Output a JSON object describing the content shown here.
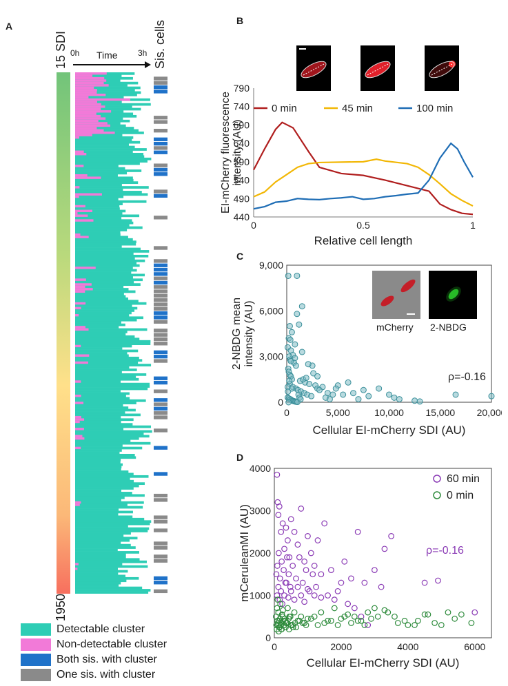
{
  "figure": {
    "panels": {
      "a": "A",
      "b": "B",
      "c": "C",
      "d": "D"
    }
  },
  "panel_a": {
    "sdi_top_label": "15 SDI",
    "sdi_bottom_label": "1950",
    "time_label": "Time",
    "time_start": "0h",
    "time_end": "3h",
    "sis_label": "Sis. cells",
    "colors": {
      "detectable": "#2ecdb5",
      "non_detectable": "#f27ad8",
      "both_sis": "#1f72c9",
      "one_sis": "#8a8a8a",
      "gradient_top": "#72c47a",
      "gradient_mid": "#ffe08a",
      "gradient_bottom": "#f76f5e"
    },
    "legend": [
      {
        "label": "Detectable cluster",
        "color": "#2ecdb5"
      },
      {
        "label": "Non-detectable cluster",
        "color": "#f27ad8"
      },
      {
        "label": "Both sis. with cluster",
        "color": "#1f72c9"
      },
      {
        "label": "One sis. with cluster",
        "color": "#8a8a8a"
      }
    ]
  },
  "chart_data": [
    {
      "id": "B",
      "type": "line",
      "ylabel_line1": "EI-mCherry fluorescence",
      "ylabel_line2": "intensity (AU)",
      "xlabel": "Relative cell length",
      "xlim": [
        0,
        1
      ],
      "ylim": [
        440,
        790
      ],
      "yticks": [
        440,
        490,
        540,
        590,
        640,
        690,
        740,
        790
      ],
      "xticks": [
        0,
        0.5,
        1
      ],
      "xtick_labels": [
        "0",
        "0.5",
        "1"
      ],
      "series": [
        {
          "name": "0 min",
          "color": "#b01e1e",
          "x": [
            0,
            0.05,
            0.1,
            0.13,
            0.18,
            0.25,
            0.3,
            0.4,
            0.5,
            0.6,
            0.7,
            0.8,
            0.85,
            0.9,
            0.95,
            1.0
          ],
          "y": [
            568,
            625,
            678,
            697,
            682,
            618,
            575,
            558,
            553,
            540,
            525,
            510,
            475,
            460,
            450,
            447
          ]
        },
        {
          "name": "45 min",
          "color": "#f2b705",
          "x": [
            0,
            0.05,
            0.1,
            0.15,
            0.2,
            0.25,
            0.3,
            0.4,
            0.5,
            0.56,
            0.6,
            0.7,
            0.75,
            0.8,
            0.85,
            0.9,
            0.95,
            1.0
          ],
          "y": [
            495,
            508,
            535,
            555,
            575,
            585,
            588,
            589,
            590,
            597,
            592,
            585,
            575,
            555,
            530,
            503,
            485,
            470
          ]
        },
        {
          "name": "100 min",
          "color": "#1e6db5",
          "x": [
            0,
            0.05,
            0.1,
            0.15,
            0.2,
            0.25,
            0.3,
            0.35,
            0.4,
            0.45,
            0.5,
            0.55,
            0.6,
            0.65,
            0.7,
            0.75,
            0.8,
            0.85,
            0.9,
            0.93,
            0.96,
            1.0
          ],
          "y": [
            462,
            468,
            480,
            483,
            490,
            488,
            487,
            490,
            492,
            495,
            488,
            490,
            495,
            498,
            502,
            505,
            540,
            600,
            640,
            625,
            590,
            548
          ]
        }
      ]
    },
    {
      "id": "C",
      "type": "scatter",
      "ylabel_line1": "2-NBDG mean",
      "ylabel_line2": "intensity (AU)",
      "xlabel": "Cellular EI-mCherry SDI (AU)",
      "xlim": [
        0,
        20000
      ],
      "ylim": [
        0,
        9000
      ],
      "xticks": [
        0,
        5000,
        10000,
        15000,
        20000
      ],
      "xtick_labels": [
        "0",
        "5,000",
        "10,000",
        "15,000",
        "20,000"
      ],
      "yticks": [
        0,
        3000,
        6000,
        9000
      ],
      "ytick_labels": [
        "0",
        "3,000",
        "6,000",
        "9,000"
      ],
      "annotation": "ρ=-0.16",
      "inset_labels": [
        "mCherry",
        "2-NBDG"
      ],
      "series": [
        {
          "name": "cells",
          "color": "#3a8f9a",
          "x": [
            150,
            1000,
            300,
            500,
            200,
            800,
            100,
            400,
            600,
            1500,
            250,
            350,
            700,
            900,
            1200,
            150,
            200,
            300,
            400,
            500,
            1300,
            1800,
            2200,
            2500,
            2800,
            3000,
            3500,
            4000,
            4500,
            5000,
            6000,
            6500,
            7500,
            8000,
            9000,
            10000,
            10500,
            11000,
            12500,
            13000,
            16500,
            20000,
            300,
            600,
            900,
            1100,
            1400,
            1700,
            2000,
            2400,
            100,
            200,
            350,
            450,
            550,
            650,
            750,
            850,
            950,
            1050,
            1150,
            1250,
            1350,
            1600,
            1900,
            2100,
            2600,
            3200,
            3800,
            4200,
            4800,
            5500,
            7000,
            100,
            250,
            400,
            800,
            1000,
            1500,
            3000,
            350,
            500,
            120,
            180
          ],
          "y": [
            8300,
            8300,
            5000,
            4600,
            4200,
            3800,
            3600,
            3400,
            3100,
            6300,
            3000,
            2800,
            2600,
            2400,
            5100,
            2200,
            2000,
            1800,
            1700,
            1500,
            1400,
            1300,
            1200,
            2400,
            1100,
            900,
            1000,
            600,
            500,
            1100,
            1300,
            600,
            800,
            400,
            900,
            500,
            300,
            200,
            100,
            50,
            500,
            400,
            1200,
            1000,
            900,
            800,
            700,
            600,
            500,
            400,
            300,
            250,
            200,
            150,
            100,
            80,
            60,
            40,
            30,
            20,
            500,
            300,
            200,
            1500,
            1600,
            2500,
            1900,
            800,
            300,
            200,
            900,
            500,
            200,
            1000,
            1400,
            2700,
            2900,
            5800,
            3300,
            1700,
            4100,
            900,
            700,
            0
          ]
        }
      ]
    },
    {
      "id": "D",
      "type": "scatter",
      "ylabel": "mCeruleanMI (AU)",
      "xlabel": "Cellular EI-mCherry SDI (AU)",
      "xlim": [
        0,
        6500
      ],
      "ylim": [
        0,
        4000
      ],
      "xticks": [
        0,
        2000,
        4000,
        6000
      ],
      "xtick_labels": [
        "0",
        "2000",
        "4000",
        "6000"
      ],
      "yticks": [
        0,
        1000,
        2000,
        3000,
        4000
      ],
      "ytick_labels": [
        "0",
        "1000",
        "2000",
        "3000",
        "4000"
      ],
      "annotation": "ρ=-0.16",
      "series": [
        {
          "name": "60 min",
          "color": "#8a3ab5",
          "x": [
            80,
            100,
            120,
            150,
            200,
            250,
            300,
            350,
            400,
            450,
            500,
            600,
            700,
            800,
            900,
            1000,
            1100,
            1200,
            1300,
            1400,
            1500,
            1700,
            1900,
            2100,
            2300,
            2500,
            2700,
            3000,
            3300,
            3500,
            4500,
            4900,
            6000,
            60,
            90,
            130,
            170,
            220,
            280,
            330,
            380,
            430,
            480,
            550,
            650,
            750,
            850,
            950,
            1050,
            1150,
            1250,
            1600,
            1800,
            2000,
            2200,
            2400,
            3200,
            80,
            120,
            160,
            200,
            240,
            300,
            360,
            420,
            500,
            600,
            700,
            800,
            900,
            1000,
            1200,
            1400,
            2600,
            2800
          ],
          "y": [
            3850,
            3200,
            2900,
            3100,
            2500,
            2700,
            2100,
            2600,
            2300,
            1900,
            2800,
            2500,
            2200,
            3050,
            1800,
            2400,
            2000,
            1700,
            2300,
            1500,
            2700,
            1600,
            1100,
            1800,
            1400,
            2500,
            1300,
            1600,
            2100,
            2400,
            1300,
            1350,
            600,
            1500,
            1700,
            2000,
            1400,
            1800,
            1600,
            1300,
            1900,
            1500,
            1200,
            1700,
            1400,
            1900,
            1300,
            1600,
            1100,
            1500,
            1200,
            1000,
            900,
            1300,
            800,
            700,
            1200,
            1000,
            1200,
            900,
            1100,
            800,
            1000,
            1300,
            950,
            1100,
            900,
            1200,
            1000,
            850,
            1150,
            1000,
            950,
            500,
            300
          ]
        },
        {
          "name": "0 min",
          "color": "#2e8b3c",
          "x": [
            50,
            80,
            100,
            120,
            150,
            180,
            200,
            230,
            260,
            300,
            350,
            400,
            450,
            500,
            600,
            700,
            800,
            900,
            1000,
            1200,
            1400,
            1600,
            1800,
            2000,
            2200,
            2400,
            2600,
            2800,
            3000,
            3300,
            3600,
            3900,
            4200,
            4500,
            4800,
            5200,
            5600,
            5900,
            60,
            90,
            110,
            140,
            170,
            210,
            250,
            290,
            330,
            380,
            430,
            480,
            550,
            650,
            750,
            850,
            950,
            1100,
            1300,
            1500,
            1700,
            1900,
            2100,
            2300,
            2500,
            2700,
            2900,
            3100,
            3400,
            3700,
            4000,
            4300,
            4600,
            5000,
            5400,
            70,
            100,
            130,
            160,
            190,
            220,
            260,
            300,
            340,
            390,
            440,
            500,
            560,
            620
          ],
          "y": [
            500,
            700,
            900,
            600,
            400,
            800,
            300,
            550,
            650,
            450,
            350,
            700,
            500,
            300,
            600,
            400,
            500,
            350,
            450,
            500,
            600,
            400,
            700,
            450,
            550,
            500,
            400,
            600,
            700,
            650,
            500,
            400,
            300,
            550,
            350,
            600,
            550,
            350,
            300,
            400,
            350,
            250,
            450,
            200,
            500,
            300,
            400,
            350,
            450,
            500,
            300,
            250,
            400,
            350,
            300,
            450,
            300,
            350,
            400,
            300,
            500,
            350,
            400,
            300,
            450,
            500,
            600,
            350,
            300,
            400,
            550,
            300,
            450,
            200,
            300,
            150,
            250,
            350,
            200,
            400,
            300,
            250,
            350,
            200,
            300,
            250,
            350
          ]
        }
      ]
    }
  ]
}
